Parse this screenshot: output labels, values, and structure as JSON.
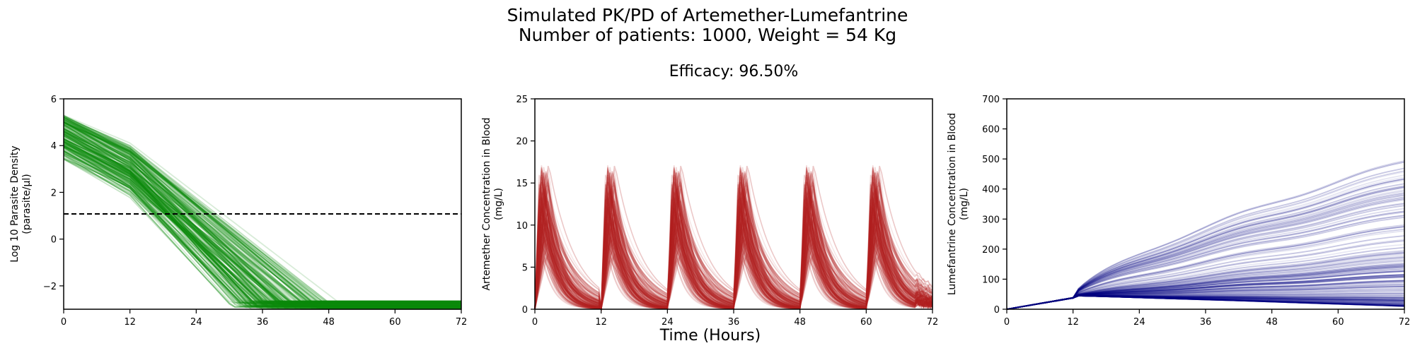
{
  "figure": {
    "title_line1": "Simulated PK/PD of Artemether-Lumefantrine",
    "title_line2": "Number of patients: 1000, Weight = 54 Kg",
    "efficacy": "Efficacy: 96.50%",
    "shared_xlabel": "Time (Hours)"
  },
  "colors": {
    "parasite": "#0b8a0b",
    "artemether": "#b22222",
    "lumefantrine": "#000080",
    "threshold": "#000000"
  },
  "chart_data": [
    {
      "type": "line",
      "name": "parasite-density",
      "ylabel_line1": "Log 10 Parasite Density",
      "ylabel_line2": "(parasite/μl)",
      "xlim": [
        0,
        72
      ],
      "ylim": [
        -3,
        6
      ],
      "xticks": [
        0,
        12,
        24,
        36,
        48,
        60,
        72
      ],
      "yticks": [
        -2,
        0,
        2,
        4,
        6
      ],
      "ytick_labels": [
        "−2",
        "0",
        "2",
        "4",
        "6"
      ],
      "threshold_y": 1.0,
      "threshold_style": "dashed",
      "series_summary": {
        "initial_range": [
          3.4,
          5.3
        ],
        "decline_per_hour_range": [
          0.18,
          0.27
        ],
        "floor_range": [
          -3.0,
          -2.65
        ],
        "curve_count_shown": 1000
      },
      "representative_series": [
        {
          "x": [
            0,
            6,
            12,
            18,
            24,
            27.6,
            72
          ],
          "y": [
            5.3,
            4.35,
            3.2,
            1.8,
            0.2,
            -2.6,
            -2.6
          ]
        },
        {
          "x": [
            0,
            12,
            24,
            36,
            48,
            60,
            66.4,
            72
          ],
          "y": [
            3.4,
            2.55,
            1.6,
            0.2,
            -1.1,
            -2.4,
            -3.0,
            -3.0
          ]
        }
      ]
    },
    {
      "type": "line",
      "name": "artemether-concentration",
      "ylabel_line1": "Artemether Concentration in Blood",
      "ylabel_line2": "(mg/L)",
      "xlim": [
        0,
        72
      ],
      "ylim": [
        0,
        25
      ],
      "xticks": [
        0,
        12,
        24,
        36,
        48,
        60,
        72
      ],
      "yticks": [
        0,
        5,
        10,
        15,
        20,
        25
      ],
      "dose_times": [
        0,
        12,
        24,
        36,
        48,
        60
      ],
      "series_summary": {
        "peak_time_after_dose_h": [
          0.8,
          2.5
        ],
        "peak_range": [
          6,
          17.5
        ],
        "decay_to_near_zero_h": [
          4,
          14
        ]
      }
    },
    {
      "type": "line",
      "name": "lumefantrine-concentration",
      "ylabel_line1": "Lumefantrine Concentration in Blood",
      "ylabel_line2": "(mg/L)",
      "xlim": [
        0,
        72
      ],
      "ylim": [
        0,
        700
      ],
      "xticks": [
        0,
        12,
        24,
        36,
        48,
        60,
        72
      ],
      "yticks": [
        0,
        100,
        200,
        300,
        400,
        500,
        600,
        700
      ],
      "series_summary": {
        "value_at_12h": 45,
        "final_value_range": [
          10,
          495
        ]
      },
      "representative_series": [
        {
          "x": [
            0,
            12,
            24,
            36,
            48,
            60,
            72
          ],
          "y": [
            0,
            45,
            115,
            200,
            300,
            385,
            495
          ]
        },
        {
          "x": [
            0,
            12,
            24,
            36,
            48,
            60,
            72
          ],
          "y": [
            0,
            40,
            70,
            85,
            95,
            100,
            105
          ]
        },
        {
          "x": [
            0,
            12,
            24,
            36,
            48,
            60,
            72
          ],
          "y": [
            0,
            35,
            45,
            50,
            55,
            55,
            58
          ]
        }
      ]
    }
  ]
}
